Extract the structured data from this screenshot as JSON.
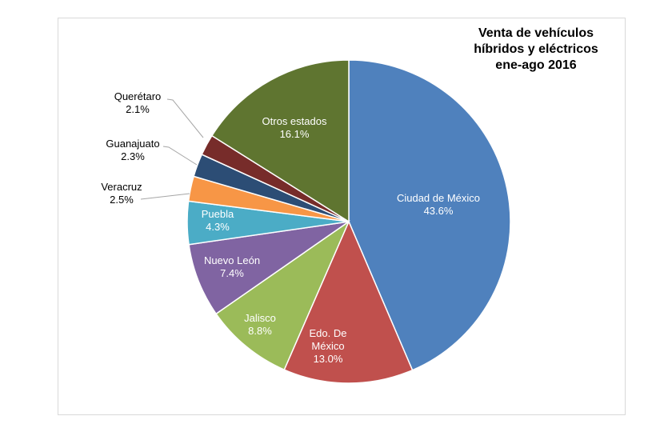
{
  "chart_data": {
    "type": "pie",
    "title_lines": [
      "Venta de vehículos",
      "híbridos y eléctricos",
      "ene-ago 2016"
    ],
    "unit": "%",
    "start": "top",
    "direction": "clockwise",
    "slices": [
      {
        "label": "Ciudad de México",
        "value": 43.6,
        "value_label": "43.6%",
        "color": "#4F81BD",
        "label_color": "#ffffff"
      },
      {
        "label": "Edo. De México",
        "label_lines": [
          "Edo. De",
          "México"
        ],
        "value": 13.0,
        "value_label": "13.0%",
        "color": "#C0504D",
        "label_color": "#ffffff"
      },
      {
        "label": "Jalisco",
        "value": 8.8,
        "value_label": "8.8%",
        "color": "#9BBB59",
        "label_color": "#ffffff"
      },
      {
        "label": "Nuevo León",
        "value": 7.4,
        "value_label": "7.4%",
        "color": "#8064A2",
        "label_color": "#ffffff"
      },
      {
        "label": "Puebla",
        "value": 4.3,
        "value_label": "4.3%",
        "color": "#4BACC6",
        "label_color": "#ffffff"
      },
      {
        "label": "Veracruz",
        "value": 2.5,
        "value_label": "2.5%",
        "color": "#F79646",
        "label_color": "#000000"
      },
      {
        "label": "Guanajuato",
        "value": 2.3,
        "value_label": "2.3%",
        "color": "#2C4D75",
        "label_color": "#000000"
      },
      {
        "label": "Querétaro",
        "value": 2.1,
        "value_label": "2.1%",
        "color": "#772C2A",
        "label_color": "#000000"
      },
      {
        "label": "Otros estados",
        "value": 16.1,
        "value_label": "16.1%",
        "color": "#5F7530",
        "label_color": "#ffffff"
      }
    ]
  }
}
